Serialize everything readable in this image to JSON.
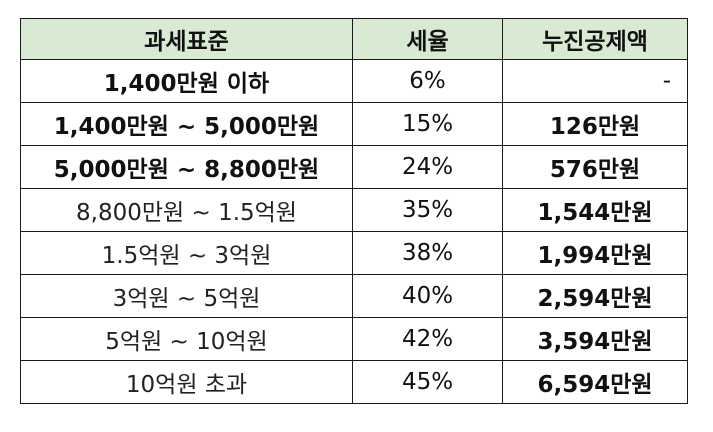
{
  "table": {
    "headers": [
      "과세표준",
      "세율",
      "누진공제액"
    ],
    "rows": [
      {
        "bracket": "1,400만원 이하",
        "rate": "6%",
        "deduction": "-"
      },
      {
        "bracket": "1,400만원 ~ 5,000만원",
        "rate": "15%",
        "deduction": "126만원"
      },
      {
        "bracket": "5,000만원 ~ 8,800만원",
        "rate": "24%",
        "deduction": "576만원"
      },
      {
        "bracket": "8,800만원 ~ 1.5억원",
        "rate": "35%",
        "deduction": "1,544만원"
      },
      {
        "bracket": "1.5억원 ~ 3억원",
        "rate": "38%",
        "deduction": "1,994만원"
      },
      {
        "bracket": "3억원 ~ 5억원",
        "rate": "40%",
        "deduction": "2,594만원"
      },
      {
        "bracket": "5억원 ~ 10억원",
        "rate": "42%",
        "deduction": "3,594만원"
      },
      {
        "bracket": "10억원 초과",
        "rate": "45%",
        "deduction": "6,594만원"
      }
    ]
  },
  "colors": {
    "header_background": "#d9ead3",
    "border": "#1a1a1a"
  }
}
